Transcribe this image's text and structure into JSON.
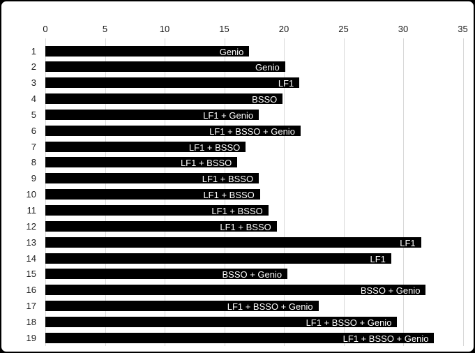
{
  "chart_data": {
    "type": "bar",
    "orientation": "horizontal",
    "title": "",
    "xlabel": "",
    "ylabel": "",
    "xlim": [
      0,
      35
    ],
    "x_ticks": [
      "0",
      "5",
      "10",
      "15",
      "20",
      "25",
      "30",
      "35"
    ],
    "grid": true,
    "legend_position": "none",
    "categories": [
      "1",
      "2",
      "3",
      "4",
      "5",
      "6",
      "7",
      "8",
      "9",
      "10",
      "11",
      "12",
      "13",
      "14",
      "15",
      "16",
      "17",
      "18",
      "19"
    ],
    "values": [
      17.1,
      20.1,
      21.3,
      19.9,
      17.9,
      21.4,
      16.8,
      16.1,
      17.9,
      18.0,
      18.7,
      19.4,
      31.5,
      29.0,
      20.3,
      31.9,
      22.9,
      29.5,
      32.6
    ],
    "bar_labels": [
      "Genio",
      "Genio",
      "LF1",
      "BSSO",
      "LF1 + Genio",
      "LF1 + BSSO + Genio",
      "LF1 + BSSO",
      "LF1 + BSSO",
      "LF1 + BSSO",
      "LF1 + BSSO",
      "LF1 + BSSO",
      "LF1 + BSSO",
      "LF1",
      "LF1",
      "BSSO + Genio",
      "BSSO + Genio",
      "LF1 + BSSO + Genio",
      "LF1 + BSSO + Genio",
      "LF1 + BSSO + Genio"
    ],
    "colors": {
      "bar": "#000000",
      "bar_label_text": "#ffffff",
      "gridline": "#d9d9d9",
      "axis_text": "#1a1a1a",
      "background": "#ffffff",
      "frame_border": "#000000"
    }
  }
}
